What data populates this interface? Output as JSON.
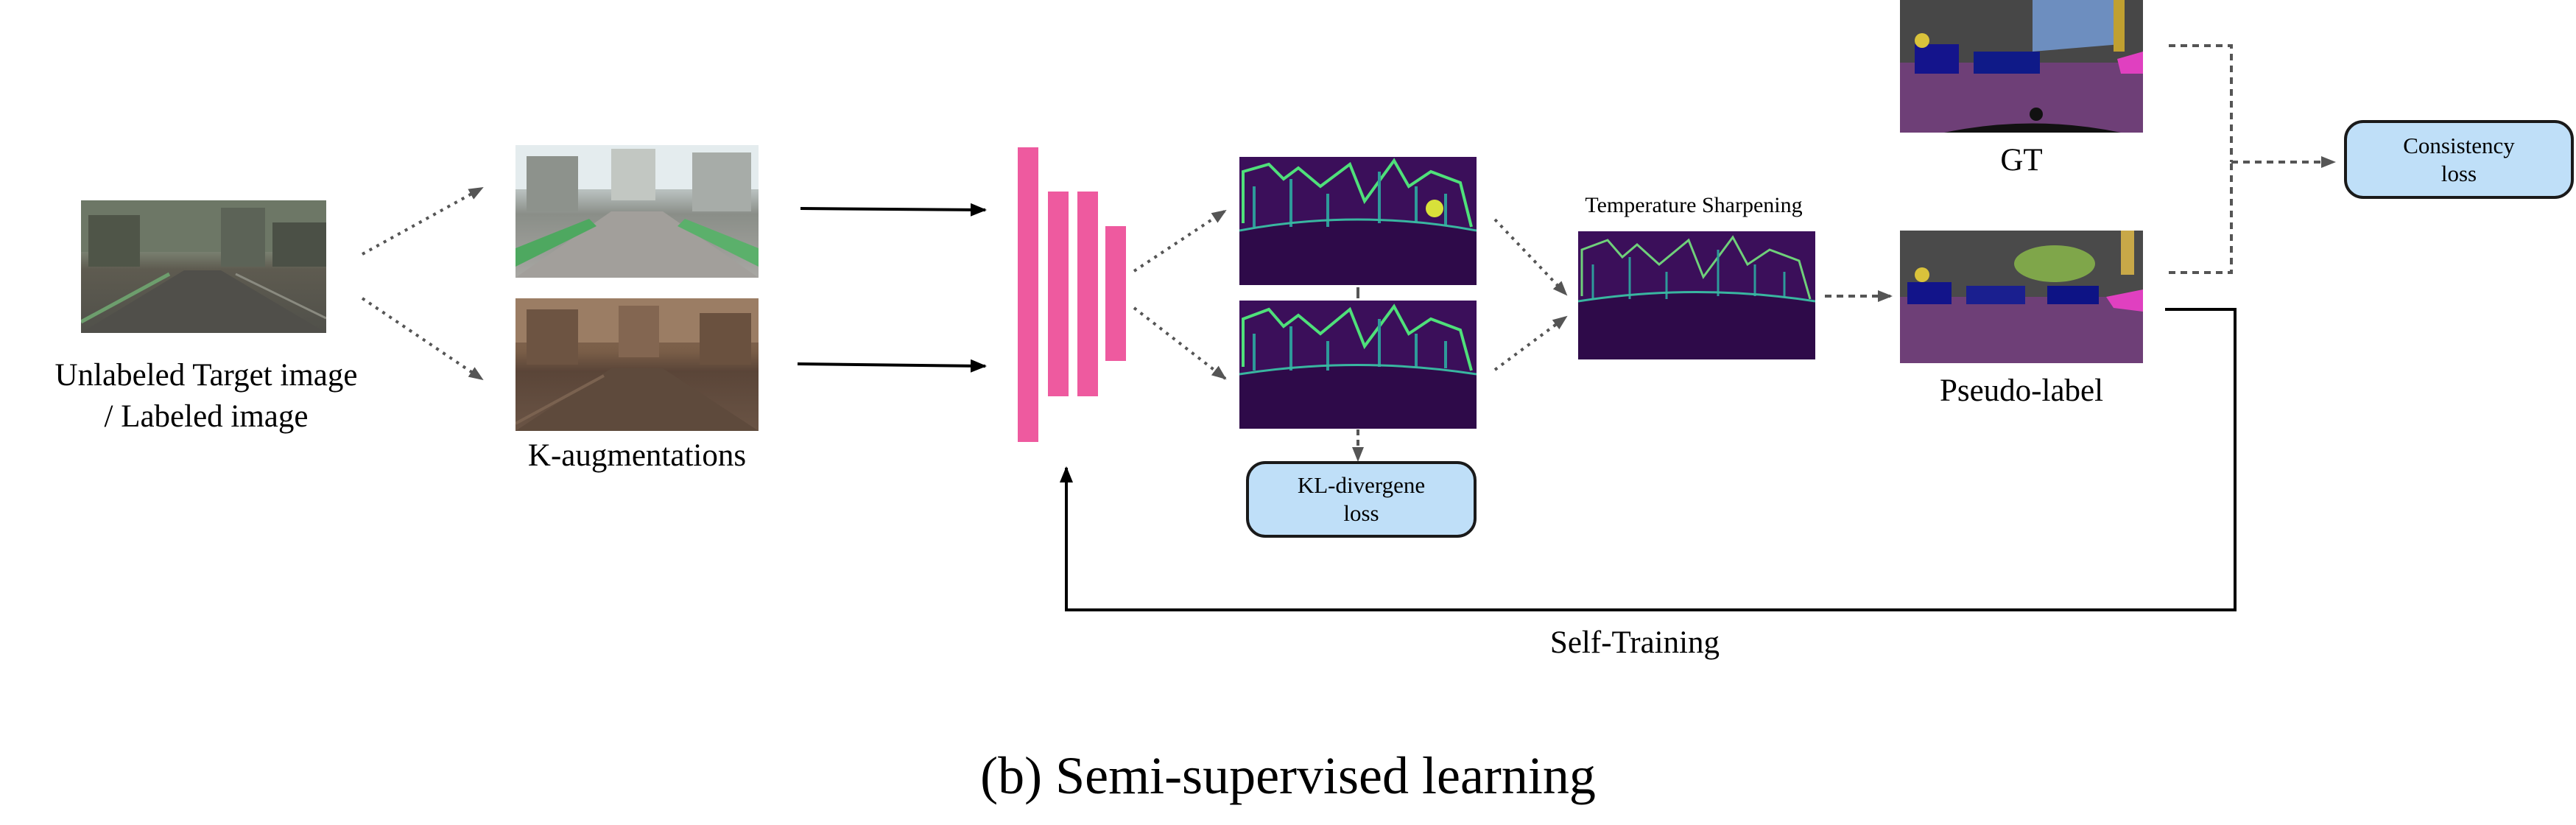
{
  "labels": {
    "input_line1": "Unlabeled Target image",
    "input_line2": "/ Labeled image",
    "k_aug": "K-augmentations",
    "temp_sharp": "Temperature Sharpening",
    "gt": "GT",
    "pseudo": "Pseudo-label",
    "self_training": "Self-Training",
    "caption": "(b) Semi-supervised learning"
  },
  "boxes": {
    "kl_line1": "KL-divergene",
    "kl_line2": "loss",
    "cons_line1": "Consistency",
    "cons_line2": "loss"
  },
  "colors": {
    "network": "#ee5a9f",
    "loss_box_fill": "#bfdff8",
    "heatmap_bg": "#3b0f5a",
    "heatmap_edge": "#4fe07a",
    "segmap_road": "#6e3f77"
  },
  "icons": {
    "network": "encoder-bars-icon",
    "arrow": "arrow-icon"
  }
}
